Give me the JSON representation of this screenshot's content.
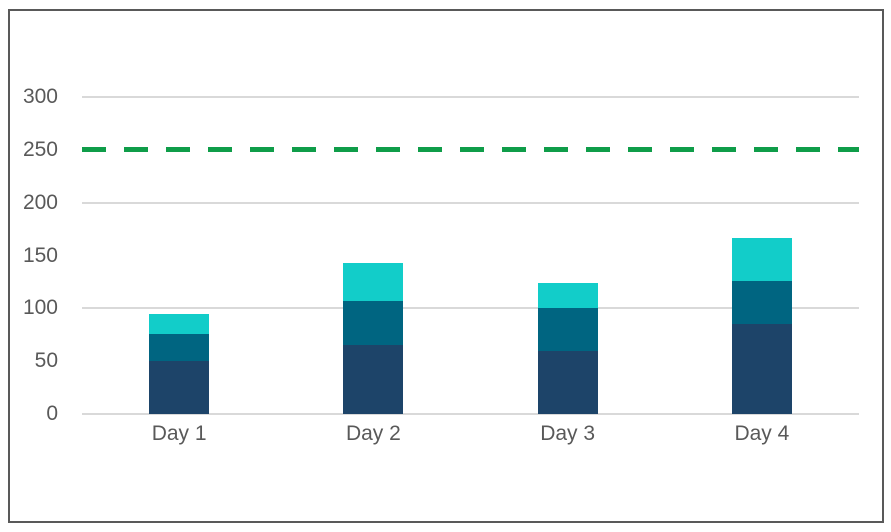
{
  "chart": {
    "background": "#ffffff",
    "border_color": "#595959",
    "gridline_color": "#d9d9d9",
    "axis_text_color": "#595959"
  },
  "chart_data": {
    "type": "bar",
    "stacked": true,
    "categories": [
      "Day 1",
      "Day 2",
      "Day 3",
      "Day 4"
    ],
    "series": [
      {
        "name": "navy-bottom",
        "color": "#1d4469",
        "values": [
          50,
          65,
          60,
          85
        ]
      },
      {
        "name": "teal-middle",
        "color": "#006581",
        "values": [
          26,
          42,
          40,
          41
        ]
      },
      {
        "name": "cyan-top",
        "color": "#12cdc9",
        "values": [
          19,
          36,
          24,
          41
        ]
      }
    ],
    "totals": [
      95,
      143,
      124,
      167
    ],
    "reference_line": {
      "value": 250,
      "color": "#0f9d49",
      "style": "dashed"
    },
    "ylim": [
      0,
      300
    ],
    "yticks": [
      0,
      50,
      100,
      150,
      200,
      250,
      300
    ],
    "gridlines": [
      0,
      100,
      200,
      300
    ],
    "grid": true,
    "legend": false
  }
}
